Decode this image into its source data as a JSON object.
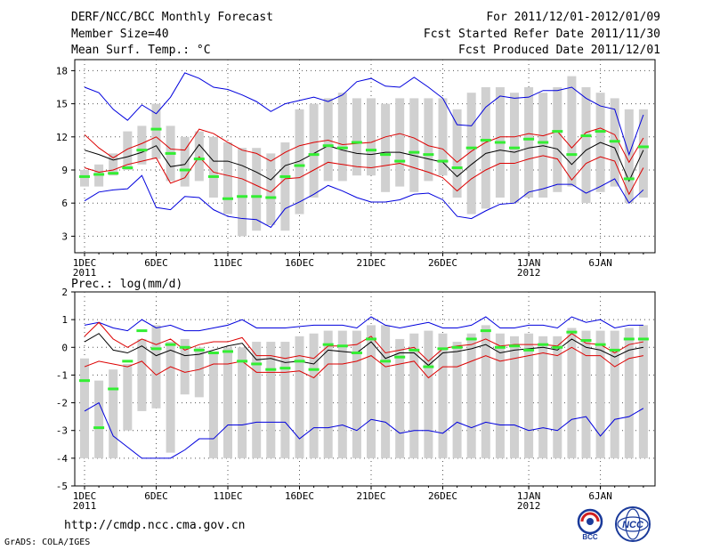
{
  "header": {
    "title": "DERF/NCC/BCC Monthly Forecast",
    "member_size": "Member Size=40",
    "variable": "Mean Surf. Temp.: °C",
    "period": "For 2011/12/01-2012/01/09",
    "started": "Fcst Started Refer Date 2011/11/30",
    "produced": "Fcst Produced Date 2011/12/01"
  },
  "footer": {
    "url": "http://cmdp.ncc.cma.gov.cn",
    "credit": "GrADS: COLA/IGES",
    "logo_left": "BCC",
    "logo_right": "NCC"
  },
  "colors": {
    "box": "#d0d0d0",
    "median": "#33ee33",
    "mean": "#000000",
    "sd": "#dd0000",
    "extreme": "#0000dd"
  },
  "chart_data": [
    {
      "type": "box",
      "title": "Mean Surf. Temp.: °C",
      "ylim": [
        1.5,
        19
      ],
      "yticks": [
        3,
        6,
        9,
        12,
        15,
        18
      ],
      "x_tick_labels": [
        {
          "day": 1,
          "label": "1DEC",
          "year": "2011"
        },
        {
          "day": 6,
          "label": "6DEC"
        },
        {
          "day": 11,
          "label": "11DEC"
        },
        {
          "day": 16,
          "label": "16DEC"
        },
        {
          "day": 21,
          "label": "21DEC"
        },
        {
          "day": 26,
          "label": "26DEC"
        },
        {
          "day": 32,
          "label": "1JAN",
          "year": "2012"
        },
        {
          "day": 37,
          "label": "6JAN"
        }
      ],
      "days": 40,
      "box_low": [
        7.5,
        7.5,
        8.5,
        9,
        9.5,
        10,
        8,
        7.5,
        8,
        6.5,
        5,
        3,
        3.5,
        4,
        3.5,
        5,
        6.5,
        8,
        8,
        8.5,
        8.5,
        7,
        7.5,
        7,
        8,
        8.5,
        6.5,
        5,
        5.5,
        6.5,
        6,
        6.5,
        6.5,
        7,
        7.5,
        6,
        7,
        7.5,
        6,
        6.5
      ],
      "box_high": [
        9,
        9.5,
        10.5,
        12.5,
        13,
        15,
        13,
        12,
        12.5,
        12,
        11.5,
        11,
        11,
        10.5,
        11.5,
        14.5,
        15,
        15.5,
        16,
        15.5,
        15.5,
        15,
        15.5,
        15.5,
        15.5,
        15.5,
        14.5,
        16,
        16.5,
        16.5,
        16,
        16.5,
        16,
        16.5,
        17.5,
        16.5,
        16,
        15.5,
        14.5,
        14.5
      ],
      "median": [
        8.4,
        8.6,
        8.7,
        9.2,
        10.8,
        12.7,
        10.5,
        9,
        10,
        8.4,
        6.4,
        6.6,
        6.6,
        6.5,
        8.4,
        9.4,
        10.4,
        11.2,
        11,
        11.5,
        10.8,
        10.4,
        9.8,
        10.6,
        10.4,
        9.8,
        9.2,
        11,
        11.7,
        11.5,
        11,
        11.8,
        11.5,
        12.5,
        10.4,
        12.1,
        12.5,
        11.6,
        8.2,
        11.1
      ],
      "mean": [
        10.8,
        10.4,
        9.9,
        10.2,
        10.6,
        11.2,
        9.3,
        9.5,
        11.3,
        9.8,
        9.8,
        9.4,
        8.8,
        8.1,
        9.4,
        9.8,
        10.5,
        11.2,
        10.8,
        10.5,
        10.4,
        10.6,
        10.6,
        10.3,
        10,
        9.7,
        8.4,
        9.5,
        10.5,
        10.8,
        10.6,
        11,
        11.2,
        10.9,
        9.5,
        10.8,
        11.5,
        11,
        8,
        10.8
      ],
      "sd_high": [
        12.2,
        11,
        10.1,
        10.9,
        11.4,
        12,
        10.9,
        10.8,
        12.7,
        12.3,
        11.5,
        10.8,
        10.5,
        9.8,
        10.6,
        11.2,
        11.5,
        11.7,
        11.3,
        11.4,
        11.5,
        12,
        12.3,
        11.9,
        11.2,
        10.9,
        9.7,
        10.7,
        11.5,
        12,
        12,
        12.3,
        12.1,
        12.5,
        11,
        12.4,
        12.8,
        12.2,
        9.7,
        11.9
      ],
      "sd_low": [
        9.2,
        8.8,
        9,
        9.5,
        9.8,
        10.1,
        7.8,
        8.3,
        10.2,
        8.8,
        8.5,
        8.2,
        7.6,
        7,
        8.2,
        8.3,
        9,
        9.7,
        9.5,
        9.3,
        9.2,
        9.4,
        9.6,
        9.2,
        8.8,
        8.3,
        7.1,
        8.2,
        9,
        9.6,
        9.6,
        10,
        10.3,
        10,
        8.1,
        9.6,
        10.2,
        9.8,
        6.8,
        9.2
      ],
      "max": [
        16.5,
        16,
        14.5,
        13.5,
        14.9,
        14.1,
        15.6,
        17.8,
        17.3,
        16.5,
        16.3,
        15.8,
        15.2,
        14.3,
        15,
        15.3,
        15.6,
        15.2,
        15.8,
        17,
        17.3,
        16.6,
        16.5,
        17.4,
        16.5,
        15.5,
        13.1,
        13,
        14.7,
        15.7,
        15.5,
        15.6,
        16.2,
        16.2,
        16.5,
        15.5,
        14.8,
        14.5,
        10.4,
        14
      ],
      "min": [
        6.2,
        7,
        7.2,
        7.3,
        8.5,
        5.6,
        5.4,
        6.6,
        6.5,
        5.4,
        4.8,
        4.6,
        4.5,
        3.8,
        5.5,
        6.1,
        6.8,
        7.6,
        7.1,
        6.5,
        6.1,
        6.1,
        6.3,
        6.8,
        6.9,
        6.3,
        4.8,
        4.6,
        5.3,
        5.9,
        6,
        7,
        7.3,
        7.7,
        7.7,
        6.9,
        7.5,
        8.2,
        6,
        7.2
      ]
    },
    {
      "type": "box",
      "title": "Prec.: log(mm/d)",
      "ylim": [
        -5,
        2
      ],
      "yticks": [
        -5,
        -4,
        -3,
        -2,
        -1,
        0,
        1,
        2
      ],
      "x_tick_labels": [
        {
          "day": 1,
          "label": "1DEC",
          "year": "2011"
        },
        {
          "day": 6,
          "label": "6DEC"
        },
        {
          "day": 11,
          "label": "11DEC"
        },
        {
          "day": 16,
          "label": "16DEC"
        },
        {
          "day": 21,
          "label": "21DEC"
        },
        {
          "day": 26,
          "label": "26DEC"
        },
        {
          "day": 32,
          "label": "1JAN",
          "year": "2012"
        },
        {
          "day": 37,
          "label": "6JAN"
        }
      ],
      "days": 40,
      "box_low": [
        -4,
        -4,
        -4,
        -3,
        -2.3,
        -2.2,
        -3.8,
        -1.7,
        -1.8,
        -4,
        -4,
        -4,
        -4,
        -4,
        -4,
        -4,
        -4,
        -4,
        -4,
        -4,
        -4,
        -4,
        -4,
        -4,
        -4,
        -4,
        -4,
        -4,
        -4,
        -4,
        -4,
        -4,
        -4,
        -4,
        -4,
        -4,
        -4,
        -4,
        -4,
        -4
      ],
      "box_high": [
        -0.4,
        -1.2,
        -0.8,
        -0.6,
        0.3,
        0.8,
        0.2,
        0.3,
        0,
        -0.2,
        0,
        0,
        0.2,
        0.2,
        0.2,
        0.4,
        0.5,
        0.6,
        0.6,
        0.6,
        0.8,
        0.8,
        0.3,
        0.5,
        0.6,
        0.5,
        0.2,
        0.5,
        0.8,
        0.5,
        0.4,
        0.5,
        0.4,
        0.4,
        0.7,
        0.6,
        0.6,
        0.6,
        0.7,
        0.8
      ],
      "median": [
        -1.2,
        -2.9,
        -1.5,
        -0.5,
        0.6,
        -0.05,
        0.1,
        0,
        -0.1,
        -0.2,
        -0.15,
        -0.5,
        -0.6,
        -0.8,
        -0.75,
        -0.5,
        -0.8,
        0.1,
        0.05,
        -0.2,
        0.3,
        -0.5,
        -0.35,
        -0.1,
        -0.7,
        -0.05,
        0,
        0.3,
        0.6,
        0,
        0.05,
        -0.1,
        0.1,
        0,
        0.55,
        0.25,
        0.1,
        -0.1,
        0.3,
        0.3
      ],
      "mean": [
        0.2,
        0.5,
        -0.1,
        -0.2,
        0.05,
        -0.3,
        -0.1,
        -0.3,
        -0.25,
        -0.1,
        0.05,
        0.15,
        -0.45,
        -0.4,
        -0.55,
        -0.5,
        -0.6,
        -0.1,
        -0.15,
        -0.2,
        0.2,
        -0.4,
        -0.2,
        -0.2,
        -0.65,
        -0.2,
        -0.15,
        -0.05,
        0.1,
        -0.2,
        -0.1,
        -0.05,
        0,
        -0.1,
        0.3,
        0,
        -0.1,
        -0.35,
        -0.1,
        0
      ],
      "sd_high": [
        0.4,
        0.9,
        0.3,
        0,
        0.3,
        0.1,
        0.3,
        -0.1,
        0.1,
        0.2,
        0.2,
        0.35,
        -0.3,
        -0.3,
        -0.4,
        -0.3,
        -0.4,
        0.05,
        0.05,
        0.1,
        0.4,
        -0.2,
        -0.1,
        0,
        -0.5,
        -0.05,
        0.05,
        0.1,
        0.3,
        0.05,
        0.1,
        0.1,
        0.1,
        0.05,
        0.5,
        0.15,
        0.1,
        -0.2,
        0.1,
        0.2
      ],
      "sd_low": [
        -0.7,
        -0.5,
        -0.6,
        -0.7,
        -0.5,
        -1,
        -0.7,
        -0.9,
        -0.8,
        -0.6,
        -0.6,
        -0.5,
        -0.9,
        -0.9,
        -0.9,
        -0.85,
        -1.1,
        -0.6,
        -0.6,
        -0.5,
        -0.3,
        -0.7,
        -0.6,
        -0.5,
        -1.1,
        -0.7,
        -0.7,
        -0.5,
        -0.3,
        -0.5,
        -0.4,
        -0.3,
        -0.2,
        -0.3,
        0,
        -0.3,
        -0.3,
        -0.7,
        -0.4,
        -0.3
      ],
      "max": [
        0.8,
        0.9,
        0.7,
        0.6,
        1,
        0.7,
        0.8,
        0.6,
        0.6,
        0.7,
        0.8,
        1,
        0.7,
        0.7,
        0.7,
        0.75,
        0.8,
        0.8,
        0.8,
        0.7,
        1.1,
        0.8,
        0.7,
        0.8,
        0.9,
        0.7,
        0.7,
        0.8,
        1.1,
        0.7,
        0.7,
        0.8,
        0.8,
        0.7,
        1.1,
        0.9,
        1,
        0.7,
        0.8,
        0.8
      ],
      "min": [
        -2.3,
        -2,
        -3.2,
        -3.6,
        -4,
        -4,
        -4,
        -3.7,
        -3.3,
        -3.3,
        -2.8,
        -2.8,
        -2.7,
        -2.7,
        -2.7,
        -3.3,
        -2.9,
        -2.9,
        -2.8,
        -3,
        -2.6,
        -2.7,
        -3.1,
        -3,
        -3,
        -3.1,
        -2.7,
        -2.9,
        -2.7,
        -2.8,
        -2.8,
        -3,
        -2.9,
        -3,
        -2.6,
        -2.5,
        -3.2,
        -2.6,
        -2.5,
        -2.2
      ]
    }
  ]
}
